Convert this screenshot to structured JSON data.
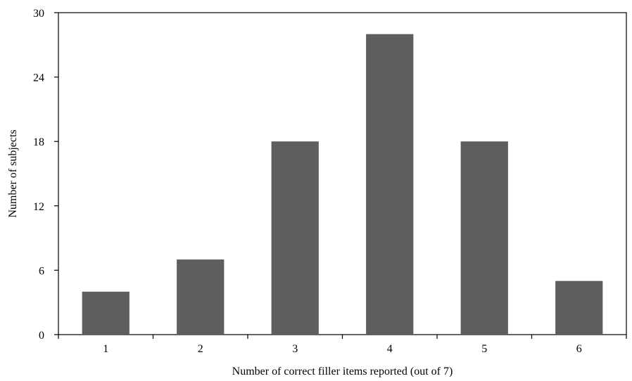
{
  "chart_data": {
    "type": "bar",
    "categories": [
      "1",
      "2",
      "3",
      "4",
      "5",
      "6"
    ],
    "values": [
      4,
      7,
      18,
      28,
      18,
      5
    ],
    "title": "",
    "xlabel": "Number of correct filler items reported (out of 7)",
    "ylabel": "Number of subjects",
    "ylim": [
      0,
      30
    ],
    "yticks": [
      0,
      6,
      12,
      18,
      24,
      30
    ],
    "grid": false,
    "bar_color": "#5e5e5e",
    "axis_color": "#000000"
  }
}
